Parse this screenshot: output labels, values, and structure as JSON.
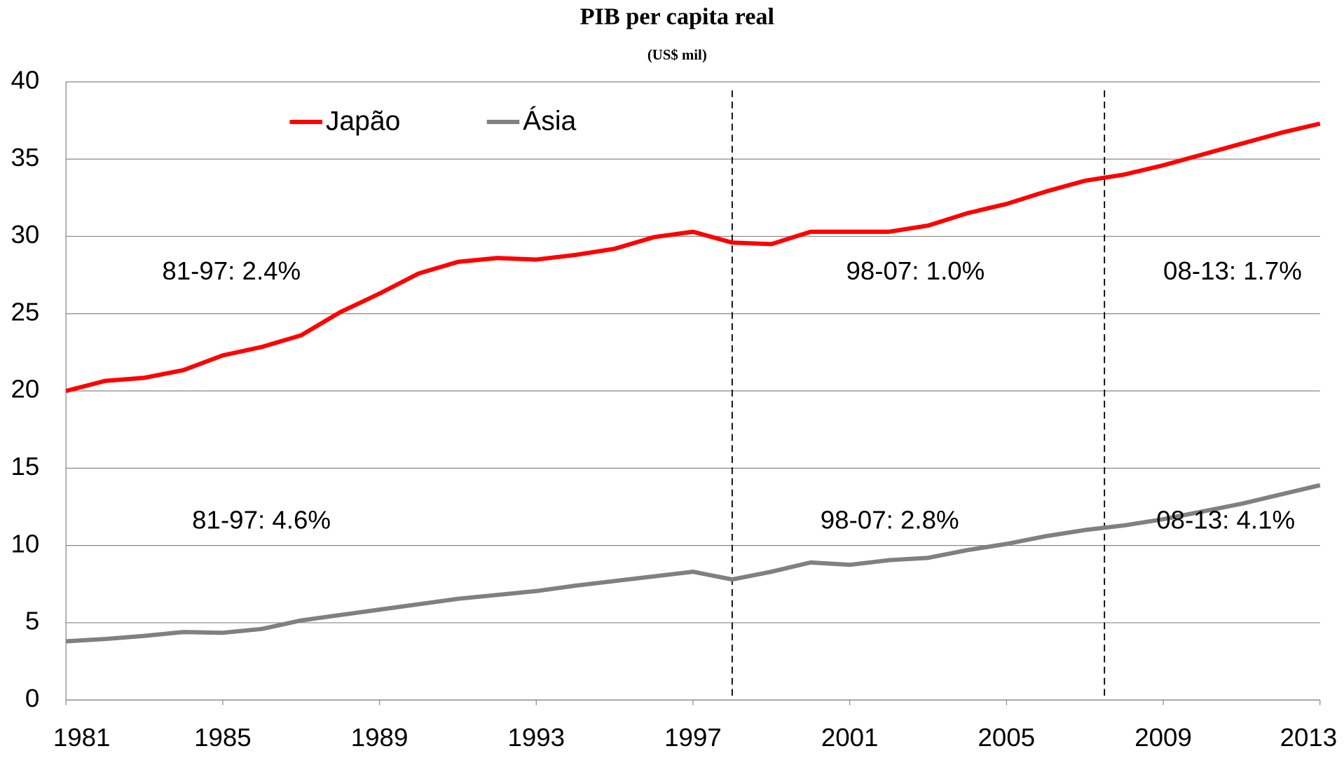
{
  "chart_data": {
    "type": "line",
    "title": "PIB per capita real",
    "subtitle": "(US$ mil)",
    "x": [
      1981,
      1982,
      1983,
      1984,
      1985,
      1986,
      1987,
      1988,
      1989,
      1990,
      1991,
      1992,
      1993,
      1994,
      1995,
      1996,
      1997,
      1998,
      1999,
      2000,
      2001,
      2002,
      2003,
      2004,
      2005,
      2006,
      2007,
      2008,
      2009,
      2010,
      2011,
      2012,
      2013
    ],
    "series": [
      {
        "name": "Japão",
        "color": "#ff0000",
        "values": [
          20.0,
          20.65,
          20.85,
          21.35,
          22.3,
          22.85,
          23.6,
          25.1,
          26.3,
          27.6,
          28.35,
          28.6,
          28.5,
          28.8,
          29.2,
          29.95,
          30.3,
          29.6,
          29.5,
          30.3,
          30.3,
          30.3,
          30.7,
          31.5,
          32.1,
          32.9,
          33.6,
          34.0,
          34.6,
          35.3,
          36.0,
          36.7,
          37.3
        ]
      },
      {
        "name": "Ásia",
        "color": "#808080",
        "values": [
          3.8,
          3.95,
          4.15,
          4.4,
          4.35,
          4.6,
          5.15,
          5.5,
          5.85,
          6.2,
          6.55,
          6.8,
          7.05,
          7.4,
          7.7,
          8.0,
          8.3,
          7.8,
          8.3,
          8.9,
          8.75,
          9.05,
          9.2,
          9.7,
          10.1,
          10.6,
          11.0,
          11.3,
          11.7,
          12.2,
          12.7,
          13.3,
          13.9
        ]
      }
    ],
    "xlim": [
      1981,
      2013
    ],
    "xticks": [
      1981,
      1985,
      1989,
      1993,
      1997,
      2001,
      2005,
      2009,
      2013
    ],
    "ylim": [
      0,
      40
    ],
    "yticks": [
      0,
      5,
      10,
      15,
      20,
      25,
      30,
      35,
      40
    ],
    "grid": true,
    "vlines": [
      1998,
      2007.5
    ],
    "annotations": [
      "81-97: 2.4%",
      "98-07: 1.0%",
      "08-13: 1.7%",
      "81-97: 4.6%",
      "98-07: 2.8%",
      "08-13: 4.1%"
    ],
    "legend": "top"
  }
}
